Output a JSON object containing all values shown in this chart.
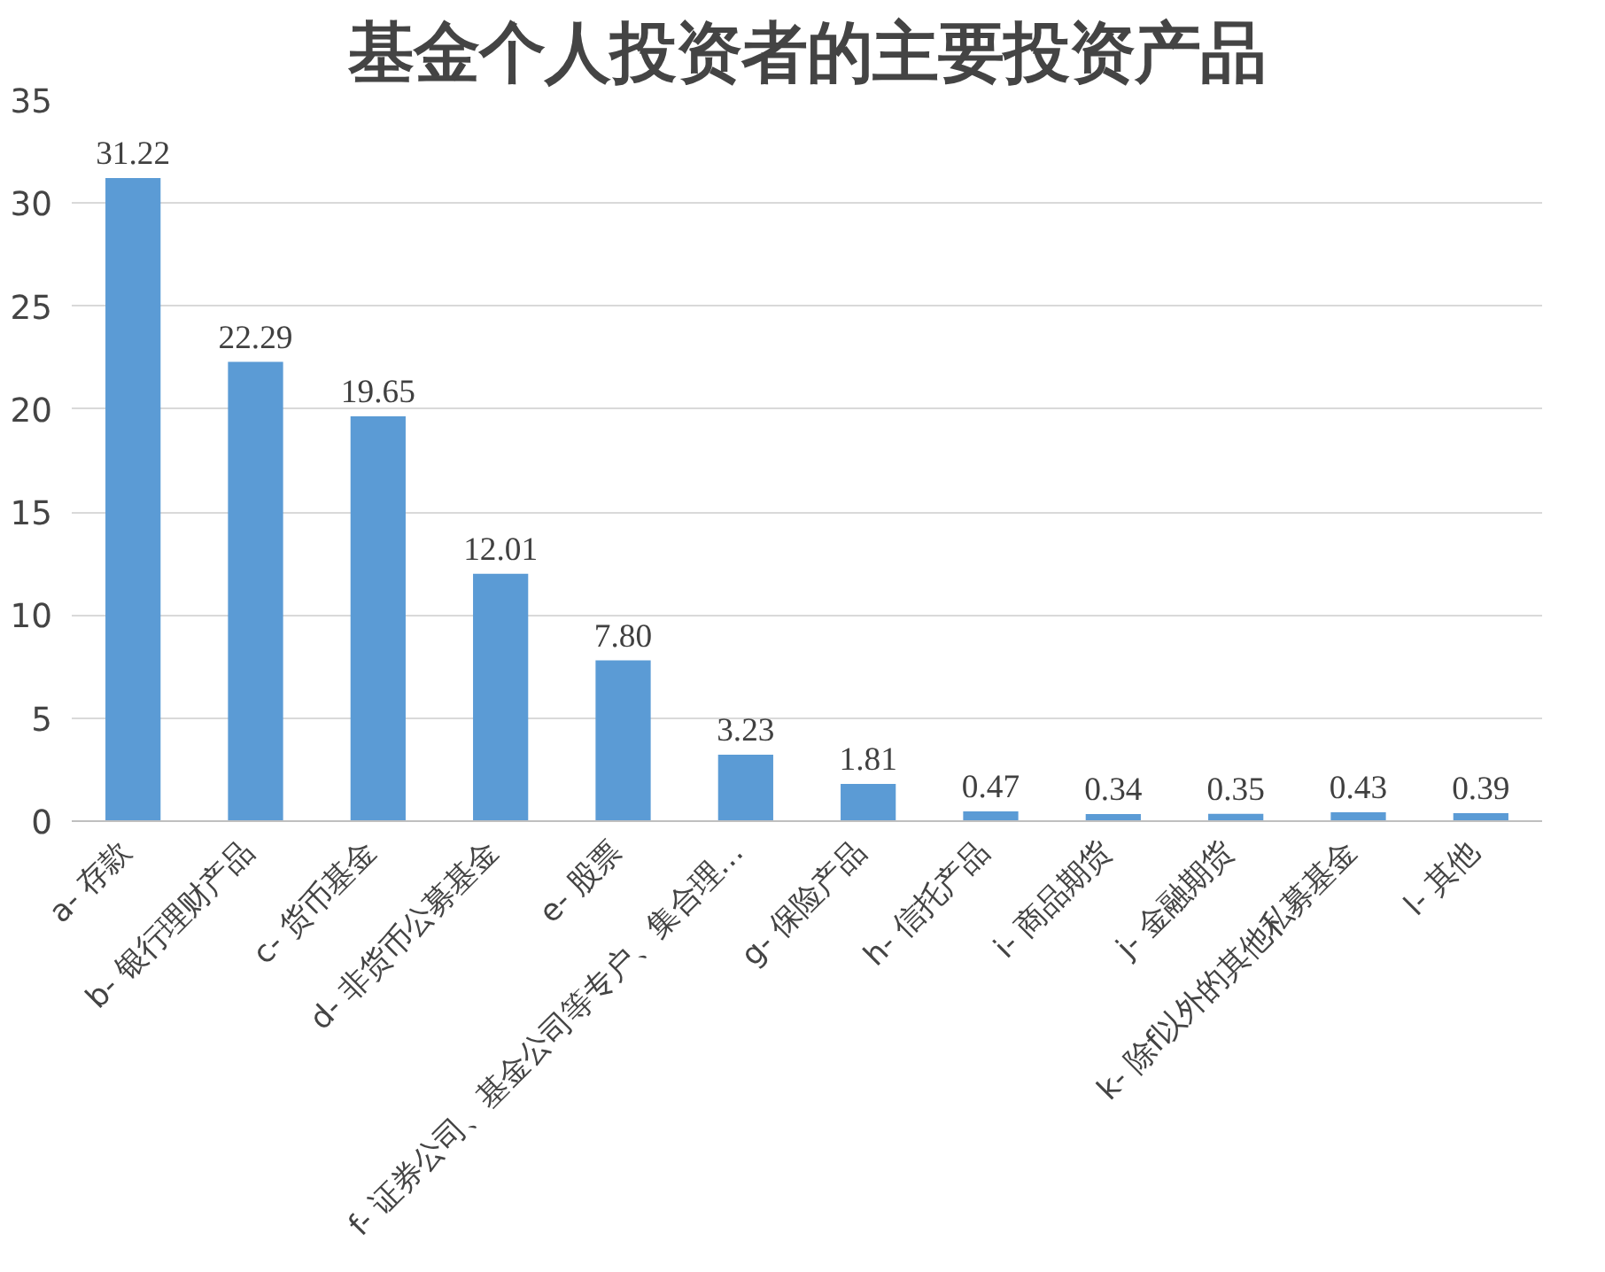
{
  "chart_data": {
    "type": "bar",
    "title": "基金个人投资者的主要投资产品",
    "categories": [
      "a-  存款",
      "b-  银行理财产品",
      "c-  货币基金",
      "d-  非货币公募基金",
      "e-  股票",
      "f-  证券公司、基金公司等专户、集合理…",
      "g-  保险产品",
      "h-  信托产品",
      "i-  商品期货",
      "j-  金融期货",
      "k-  除f以外的其他私募基金",
      "l-  其他"
    ],
    "values": [
      31.22,
      22.29,
      19.65,
      12.01,
      7.8,
      3.23,
      1.81,
      0.47,
      0.34,
      0.35,
      0.43,
      0.39
    ],
    "value_labels": [
      "31.22",
      "22.29",
      "19.65",
      "12.01",
      "7.80",
      "3.23",
      "1.81",
      "0.47",
      "0.34",
      "0.35",
      "0.43",
      "0.39"
    ],
    "color": "#5b9bd5",
    "ylim": [
      0,
      35
    ],
    "yticks": [
      0,
      5,
      10,
      15,
      20,
      25,
      30,
      35
    ],
    "grid": "y"
  }
}
